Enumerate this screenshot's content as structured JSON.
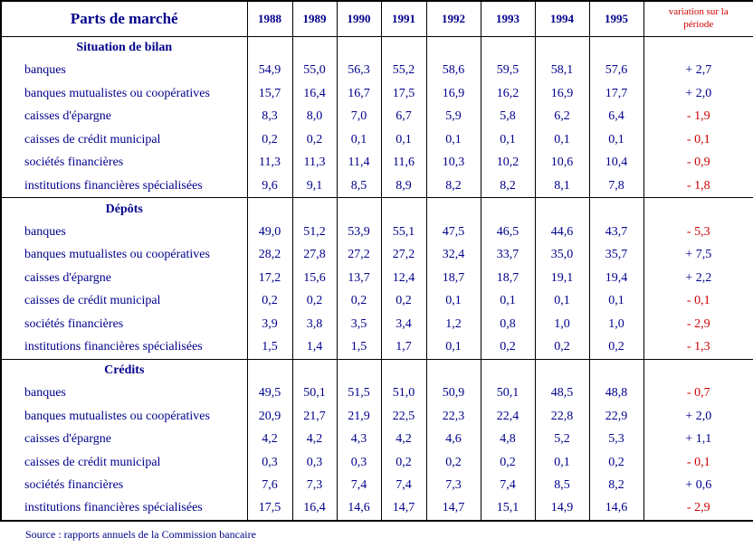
{
  "colors": {
    "navy": "#00008B",
    "red": "#CC0000",
    "border": "#000000"
  },
  "chart_data": {
    "type": "table",
    "title": "Parts de marché",
    "year_columns": [
      "1988",
      "1989",
      "1990",
      "1991",
      "1992",
      "1993",
      "1994",
      "1995"
    ],
    "variation_column": "variation sur la période",
    "sections": [
      {
        "heading": "Situation de bilan",
        "rows": [
          {
            "label": "banques",
            "values": [
              "54,9",
              "55,0",
              "56,3",
              "55,2",
              "58,6",
              "59,5",
              "58,1",
              "57,6"
            ],
            "variation": "+ 2,7"
          },
          {
            "label": "banques mutualistes ou coopératives",
            "values": [
              "15,7",
              "16,4",
              "16,7",
              "17,5",
              "16,9",
              "16,2",
              "16,9",
              "17,7"
            ],
            "variation": "+ 2,0"
          },
          {
            "label": "caisses d'épargne",
            "values": [
              "8,3",
              "8,0",
              "7,0",
              "6,7",
              "5,9",
              "5,8",
              "6,2",
              "6,4"
            ],
            "variation": "- 1,9"
          },
          {
            "label": "caisses de crédit municipal",
            "values": [
              "0,2",
              "0,2",
              "0,1",
              "0,1",
              "0,1",
              "0,1",
              "0,1",
              "0,1"
            ],
            "variation": "- 0,1"
          },
          {
            "label": "sociétés financières",
            "values": [
              "11,3",
              "11,3",
              "11,4",
              "11,6",
              "10,3",
              "10,2",
              "10,6",
              "10,4"
            ],
            "variation": "- 0,9"
          },
          {
            "label": "institutions financières spécialisées",
            "values": [
              "9,6",
              "9,1",
              "8,5",
              "8,9",
              "8,2",
              "8,2",
              "8,1",
              "7,8"
            ],
            "variation": "- 1,8"
          }
        ]
      },
      {
        "heading": "Dépôts",
        "rows": [
          {
            "label": "banques",
            "values": [
              "49,0",
              "51,2",
              "53,9",
              "55,1",
              "47,5",
              "46,5",
              "44,6",
              "43,7"
            ],
            "variation": "- 5,3"
          },
          {
            "label": "banques mutualistes ou coopératives",
            "values": [
              "28,2",
              "27,8",
              "27,2",
              "27,2",
              "32,4",
              "33,7",
              "35,0",
              "35,7"
            ],
            "variation": "+ 7,5"
          },
          {
            "label": "caisses d'épargne",
            "values": [
              "17,2",
              "15,6",
              "13,7",
              "12,4",
              "18,7",
              "18,7",
              "19,1",
              "19,4"
            ],
            "variation": "+ 2,2"
          },
          {
            "label": "caisses de crédit municipal",
            "values": [
              "0,2",
              "0,2",
              "0,2",
              "0,2",
              "0,1",
              "0,1",
              "0,1",
              "0,1"
            ],
            "variation": "- 0,1"
          },
          {
            "label": "sociétés financières",
            "values": [
              "3,9",
              "3,8",
              "3,5",
              "3,4",
              "1,2",
              "0,8",
              "1,0",
              "1,0"
            ],
            "variation": "- 2,9"
          },
          {
            "label": "institutions financières spécialisées",
            "values": [
              "1,5",
              "1,4",
              "1,5",
              "1,7",
              "0,1",
              "0,2",
              "0,2",
              "0,2"
            ],
            "variation": "- 1,3"
          }
        ]
      },
      {
        "heading": "Crédits",
        "rows": [
          {
            "label": "banques",
            "values": [
              "49,5",
              "50,1",
              "51,5",
              "51,0",
              "50,9",
              "50,1",
              "48,5",
              "48,8"
            ],
            "variation": "- 0,7"
          },
          {
            "label": "banques mutualistes ou coopératives",
            "values": [
              "20,9",
              "21,7",
              "21,9",
              "22,5",
              "22,3",
              "22,4",
              "22,8",
              "22,9"
            ],
            "variation": "+ 2,0"
          },
          {
            "label": "caisses d'épargne",
            "values": [
              "4,2",
              "4,2",
              "4,3",
              "4,2",
              "4,6",
              "4,8",
              "5,2",
              "5,3"
            ],
            "variation": "+ 1,1"
          },
          {
            "label": "caisses de crédit municipal",
            "values": [
              "0,3",
              "0,3",
              "0,3",
              "0,2",
              "0,2",
              "0,2",
              "0,1",
              "0,2"
            ],
            "variation": "- 0,1"
          },
          {
            "label": "sociétés financières",
            "values": [
              "7,6",
              "7,3",
              "7,4",
              "7,4",
              "7,3",
              "7,4",
              "8,5",
              "8,2"
            ],
            "variation": "+ 0,6"
          },
          {
            "label": "institutions financières spécialisées",
            "values": [
              "17,5",
              "16,4",
              "14,6",
              "14,7",
              "14,7",
              "15,1",
              "14,9",
              "14,6"
            ],
            "variation": "- 2,9"
          }
        ]
      }
    ],
    "source": "Source : rapports annuels de la Commission bancaire"
  }
}
